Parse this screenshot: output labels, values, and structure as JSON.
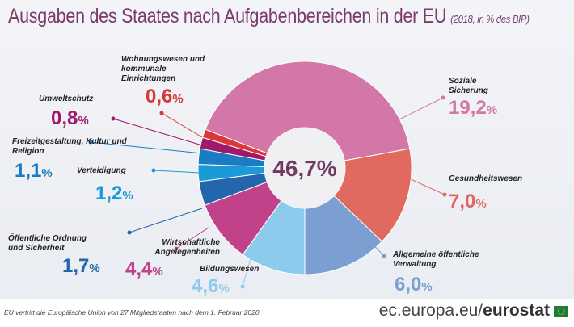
{
  "title": "Ausgaben des Staates nach Aufgabenbereichen in der EU",
  "subtitle": "(2018, in % des BIP)",
  "chart_data": {
    "type": "pie",
    "donut": true,
    "center_label": "46,7%",
    "total": 46.7,
    "slices": [
      {
        "label": "Bildungswesen",
        "value": 4.6,
        "display": "4,6",
        "color": "#8ccbec"
      },
      {
        "label": "Wirtschaftliche Angelegenheiten",
        "value": 4.4,
        "display": "4,4",
        "color": "#c2428a"
      },
      {
        "label": "Öffentliche Ordnung und Sicherheit",
        "value": 1.7,
        "display": "1,7",
        "color": "#2466ae"
      },
      {
        "label": "Verteidigung",
        "value": 1.2,
        "display": "1,2",
        "color": "#1a9ad6"
      },
      {
        "label": "Freizeitgestaltung, Kultur und Religion",
        "value": 1.1,
        "display": "1,1",
        "color": "#1a7cc2"
      },
      {
        "label": "Umweltschutz",
        "value": 0.8,
        "display": "0,8",
        "color": "#a0196a"
      },
      {
        "label": "Wohnungswesen und kommunale Einrichtungen",
        "value": 0.6,
        "display": "0,6",
        "color": "#d93838"
      },
      {
        "label": "Soziale Sicherung",
        "value": 19.2,
        "display": "19,2",
        "color": "#d277a7"
      },
      {
        "label": "Gesundheitswesen",
        "value": 7.0,
        "display": "7,0",
        "color": "#e06a60"
      },
      {
        "label": "Allgemeine öffentliche Verwaltung",
        "value": 6.0,
        "display": "6,0",
        "color": "#7b9fd0"
      }
    ],
    "unit": "%"
  },
  "footer": {
    "note": "EU vertritt die Europäische Union von 27 Mitgliedstaaten nach dem 1. Februar 2020",
    "site_prefix": "ec.europa.eu/",
    "site_brand": "eurostat"
  }
}
